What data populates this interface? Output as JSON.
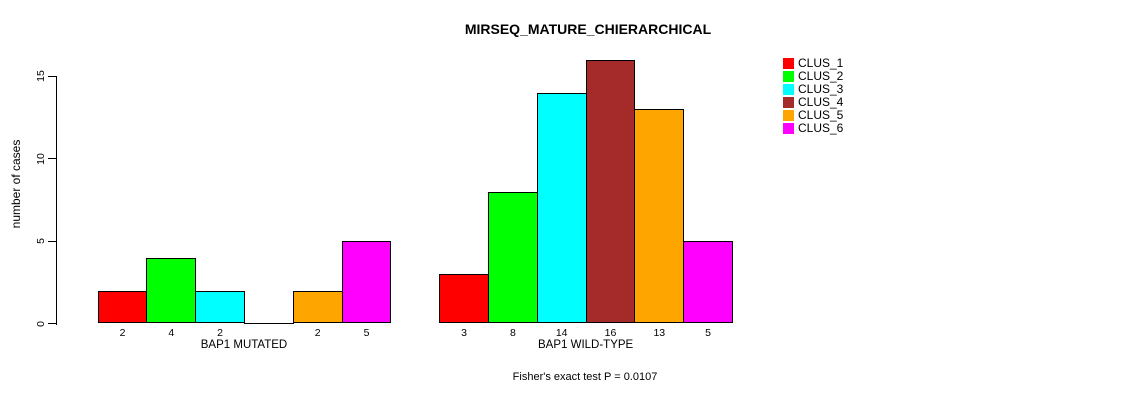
{
  "chart_data": {
    "type": "bar",
    "title": "MIRSEQ_MATURE_CHIERARCHICAL",
    "ylabel": "number of cases",
    "ylim": [
      0,
      15
    ],
    "yticks": [
      0,
      5,
      10,
      15
    ],
    "grid": false,
    "legend_position": "right",
    "annotation": "Fisher's exact test P = 0.0107",
    "categories": [
      "BAP1 MUTATED",
      "BAP1 WILD-TYPE"
    ],
    "series": [
      {
        "name": "CLUS_1",
        "color": "#FF0000",
        "values": [
          2,
          3
        ]
      },
      {
        "name": "CLUS_2",
        "color": "#00FF00",
        "values": [
          4,
          8
        ]
      },
      {
        "name": "CLUS_3",
        "color": "#00FFFF",
        "values": [
          2,
          14
        ]
      },
      {
        "name": "CLUS_4",
        "color": "#A52A2A",
        "values": [
          0,
          16
        ]
      },
      {
        "name": "CLUS_5",
        "color": "#FFA500",
        "values": [
          2,
          13
        ]
      },
      {
        "name": "CLUS_6",
        "color": "#FF00FF",
        "values": [
          5,
          5
        ]
      }
    ],
    "bar_value_labels": [
      [
        "2",
        "4",
        "2",
        "",
        "2",
        "5"
      ],
      [
        "3",
        "8",
        "14",
        "16",
        "13",
        "5"
      ]
    ]
  }
}
